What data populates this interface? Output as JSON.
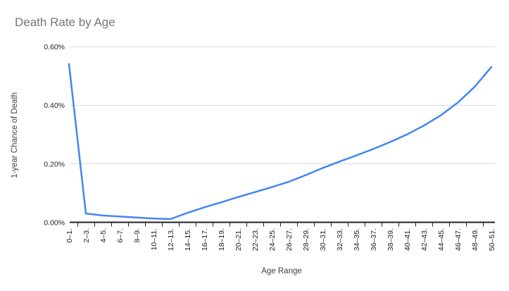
{
  "title": "Death Rate by Age",
  "colors": {
    "background": "#ffffff",
    "title": "#757575",
    "axis_title": "#424242",
    "tick_label": "#202124",
    "gridline": "#d9d9d9",
    "axis_line": "#212121",
    "line": "#4285f4"
  },
  "chart_data": {
    "type": "line",
    "title": "Death Rate by Age",
    "xlabel": "Age Range",
    "ylabel": "1-year Chance of Death",
    "unit": "percent",
    "categories": [
      "0–1.",
      "2–3.",
      "4–5.",
      "6–7.",
      "8–9.",
      "10–11.",
      "12–13.",
      "14–15.",
      "16–17.",
      "18–19.",
      "20–21.",
      "22–23.",
      "24–25.",
      "26–27.",
      "28–29.",
      "30–31.",
      "32–33.",
      "34–35.",
      "36–37.",
      "38–39.",
      "40–41.",
      "42–43.",
      "44–45.",
      "46–47.",
      "48–49.",
      "50–51."
    ],
    "values": [
      0.54,
      0.03,
      0.023,
      0.02,
      0.016,
      0.013,
      0.011,
      0.032,
      0.051,
      0.068,
      0.086,
      0.103,
      0.12,
      0.138,
      0.161,
      0.185,
      0.207,
      0.228,
      0.25,
      0.274,
      0.3,
      0.33,
      0.365,
      0.408,
      0.462,
      0.53
    ],
    "ylim": [
      0,
      0.6
    ],
    "ytick_values": [
      0,
      0.2,
      0.4,
      0.6
    ],
    "ytick_labels": [
      "0.00%",
      "0.20%",
      "0.40%",
      "0.60%"
    ],
    "grid": true,
    "legend": false,
    "line_color": "#4285f4"
  }
}
